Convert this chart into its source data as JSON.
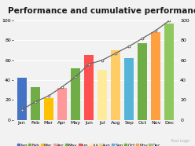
{
  "title": "Performance and cumulative performance",
  "categories": [
    "Jan",
    "Feb",
    "Mar",
    "Apr",
    "May",
    "Jun",
    "Jul",
    "Aug",
    "Sep",
    "Oct",
    "Nov",
    "Dec"
  ],
  "bar_values": [
    42,
    33,
    22,
    32,
    52,
    65,
    50,
    70,
    62,
    77,
    88,
    97
  ],
  "line_values": [
    10,
    18,
    24,
    33,
    43,
    56,
    60,
    67,
    74,
    82,
    90,
    100
  ],
  "bar_colors": [
    "#4472C4",
    "#70AD47",
    "#FFC000",
    "#FF9999",
    "#70AD47",
    "#FF5050",
    "#FFEB99",
    "#FFCC66",
    "#56B4D8",
    "#70AD47",
    "#FFA040",
    "#90C860"
  ],
  "left_ylim": [
    0,
    100
  ],
  "right_ylim": [
    0,
    100
  ],
  "left_yticks": [
    0,
    20,
    40,
    60,
    80,
    100
  ],
  "right_yticks": [
    0,
    20,
    40,
    60,
    80,
    100
  ],
  "background_color": "#f2f2f2",
  "title_fontsize": 7.5,
  "tick_fontsize": 4.5,
  "legend_fontsize": 4.0,
  "line_color": "#666666",
  "marker_size": 2.0,
  "line_width": 0.9,
  "bar_width": 0.7,
  "grid_color": "#ffffff",
  "grid_lw": 0.8
}
